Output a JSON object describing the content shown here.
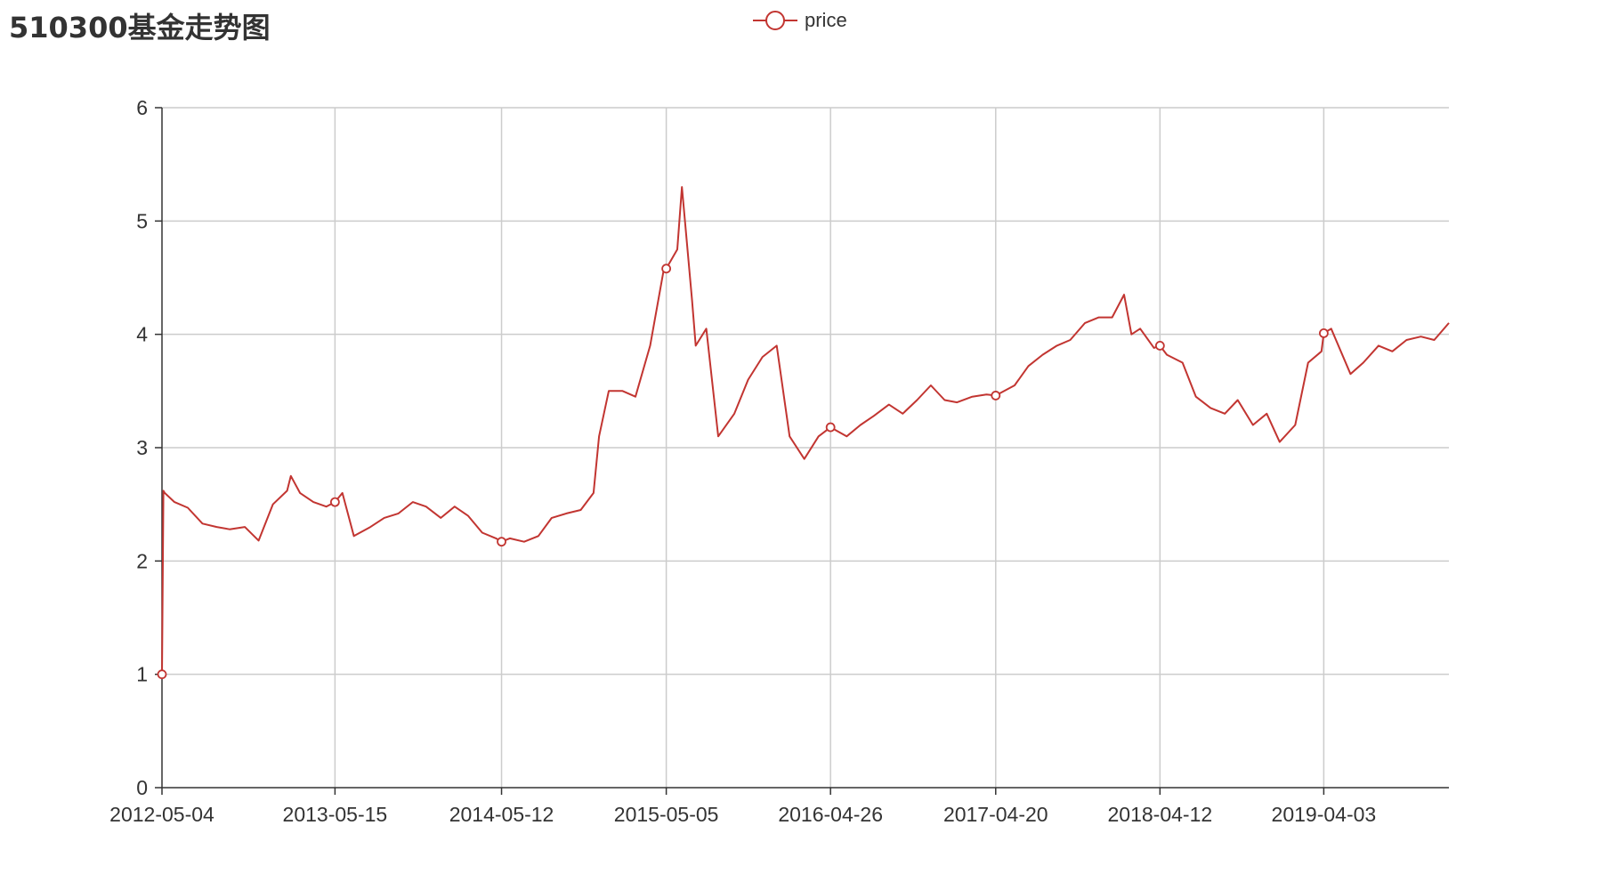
{
  "title": "510300基金走势图",
  "colors": {
    "series": "#c23531",
    "grid": "#cccccc",
    "axis": "#333333",
    "text": "#333333"
  },
  "legend": {
    "position": "top-center",
    "icon": "circle-line-icon"
  },
  "chart_data": {
    "type": "line",
    "title": "510300基金走势图",
    "xlabel": "",
    "ylabel": "",
    "ylim": [
      0,
      6
    ],
    "yticks": [
      0,
      1,
      2,
      3,
      4,
      5,
      6
    ],
    "xlim": [
      "2012-05-04",
      "2019-12-31"
    ],
    "xtick_labels": [
      "2012-05-04",
      "2013-05-15",
      "2014-05-12",
      "2015-05-05",
      "2016-04-26",
      "2017-04-20",
      "2018-04-12",
      "2019-04-03"
    ],
    "grid": true,
    "legend_position": "top-center",
    "series": [
      {
        "name": "price",
        "x": [
          "2012-05-04",
          "2012-05-07",
          "2012-05-10",
          "2012-05-31",
          "2012-06-29",
          "2012-07-31",
          "2012-08-31",
          "2012-09-28",
          "2012-10-31",
          "2012-11-30",
          "2012-12-31",
          "2013-01-31",
          "2013-02-08",
          "2013-02-28",
          "2013-03-29",
          "2013-04-26",
          "2013-05-15",
          "2013-05-31",
          "2013-06-25",
          "2013-07-31",
          "2013-08-30",
          "2013-09-30",
          "2013-10-31",
          "2013-11-29",
          "2013-12-31",
          "2014-01-30",
          "2014-02-28",
          "2014-03-31",
          "2014-04-30",
          "2014-05-12",
          "2014-05-30",
          "2014-06-30",
          "2014-07-31",
          "2014-08-29",
          "2014-09-30",
          "2014-10-31",
          "2014-11-28",
          "2014-12-10",
          "2014-12-31",
          "2015-01-30",
          "2015-02-27",
          "2015-03-31",
          "2015-04-30",
          "2015-05-05",
          "2015-05-29",
          "2015-06-08",
          "2015-06-30",
          "2015-07-08",
          "2015-07-31",
          "2015-08-26",
          "2015-09-30",
          "2015-10-30",
          "2015-11-30",
          "2015-12-31",
          "2016-01-28",
          "2016-02-29",
          "2016-03-31",
          "2016-04-26",
          "2016-05-31",
          "2016-06-30",
          "2016-07-29",
          "2016-08-31",
          "2016-09-30",
          "2016-10-31",
          "2016-11-30",
          "2016-12-30",
          "2017-01-26",
          "2017-02-28",
          "2017-03-31",
          "2017-04-20",
          "2017-05-31",
          "2017-06-30",
          "2017-07-31",
          "2017-08-31",
          "2017-09-29",
          "2017-10-31",
          "2017-11-30",
          "2017-12-29",
          "2018-01-24",
          "2018-02-09",
          "2018-02-28",
          "2018-03-30",
          "2018-04-12",
          "2018-04-27",
          "2018-05-31",
          "2018-06-29",
          "2018-07-31",
          "2018-08-31",
          "2018-09-28",
          "2018-10-31",
          "2018-11-30",
          "2018-12-28",
          "2019-01-31",
          "2019-02-28",
          "2019-03-29",
          "2019-04-03",
          "2019-04-19",
          "2019-05-31",
          "2019-06-28",
          "2019-07-31",
          "2019-08-30",
          "2019-09-30",
          "2019-10-31",
          "2019-11-29",
          "2019-12-31"
        ],
        "values": [
          1.0,
          2.62,
          2.6,
          2.52,
          2.47,
          2.33,
          2.3,
          2.28,
          2.3,
          2.18,
          2.5,
          2.62,
          2.75,
          2.6,
          2.52,
          2.48,
          2.52,
          2.6,
          2.22,
          2.3,
          2.38,
          2.42,
          2.52,
          2.48,
          2.38,
          2.48,
          2.4,
          2.25,
          2.2,
          2.17,
          2.2,
          2.17,
          2.22,
          2.38,
          2.42,
          2.45,
          2.6,
          3.1,
          3.5,
          3.5,
          3.45,
          3.9,
          4.58,
          4.58,
          4.75,
          5.3,
          4.3,
          3.9,
          4.05,
          3.1,
          3.3,
          3.6,
          3.8,
          3.9,
          3.1,
          2.9,
          3.1,
          3.18,
          3.1,
          3.2,
          3.28,
          3.38,
          3.3,
          3.42,
          3.55,
          3.42,
          3.4,
          3.45,
          3.47,
          3.46,
          3.55,
          3.72,
          3.82,
          3.9,
          3.95,
          4.1,
          4.15,
          4.15,
          4.35,
          4.0,
          4.05,
          3.88,
          3.9,
          3.82,
          3.75,
          3.45,
          3.35,
          3.3,
          3.42,
          3.2,
          3.3,
          3.05,
          3.2,
          3.75,
          3.85,
          4.01,
          4.05,
          3.65,
          3.75,
          3.9,
          3.85,
          3.95,
          3.98,
          3.95,
          4.1
        ]
      }
    ]
  }
}
